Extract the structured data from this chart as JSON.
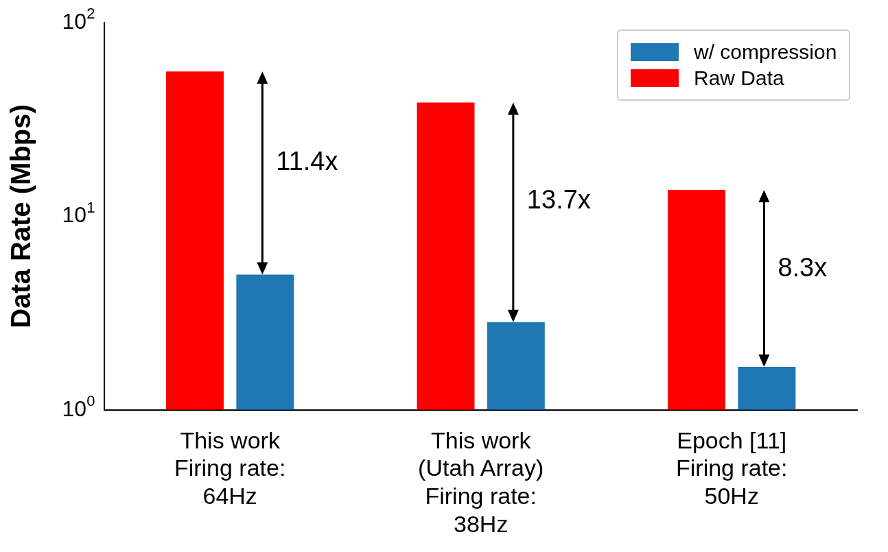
{
  "chart_data": {
    "type": "bar",
    "ylabel": "Data Rate (Mbps)",
    "categories": [
      "This work\nFiring rate:\n64Hz",
      "This work\n(Utah Array)\nFiring rate:\n38Hz",
      "Epoch [11]\nFiring rate:\n50Hz"
    ],
    "series": [
      {
        "name": "Raw Data",
        "color": "#ff0000",
        "values": [
          56,
          38.7,
          13.7
        ]
      },
      {
        "name": "w/ compression",
        "color": "#1f77b4",
        "values": [
          5.0,
          2.84,
          1.67
        ]
      }
    ],
    "log": true,
    "ylim": [
      1,
      100
    ],
    "yticks": [
      {
        "value": 1,
        "label": "10$^{0}$"
      },
      {
        "value": 10,
        "label": "10$^{1}$"
      },
      {
        "value": 100,
        "label": "10$^{2}$"
      }
    ],
    "grid": false,
    "legend": "top right",
    "annotations": [
      "11.4x",
      "13.7x",
      "8.3x"
    ]
  }
}
